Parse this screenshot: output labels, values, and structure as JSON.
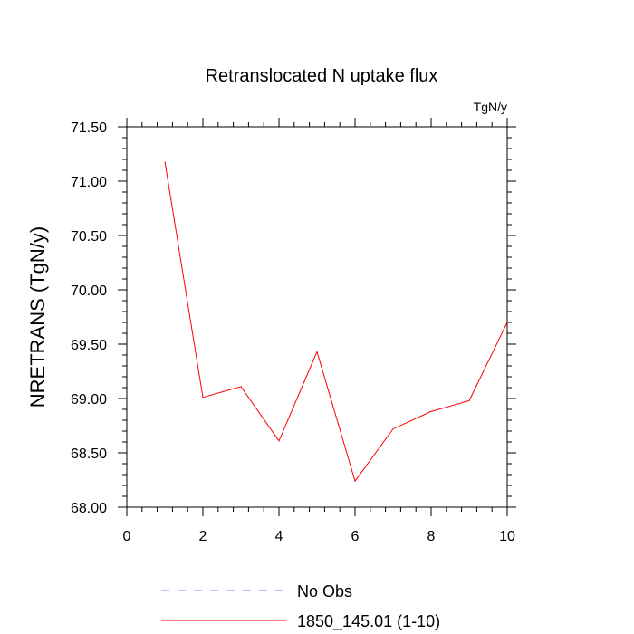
{
  "chart_data": {
    "type": "line",
    "title": "Retranslocated N uptake flux",
    "units": "TgN/y",
    "xlabel": "",
    "ylabel": "NRETRANS  (TgN/y)",
    "xlim": [
      0,
      10
    ],
    "ylim": [
      68.0,
      71.5
    ],
    "xticks": [
      0,
      2,
      4,
      6,
      8,
      10
    ],
    "xtick_labels": [
      "0",
      "2",
      "4",
      "6",
      "8",
      "10"
    ],
    "yticks": [
      68.0,
      68.5,
      69.0,
      69.5,
      70.0,
      70.5,
      71.0,
      71.5
    ],
    "ytick_labels": [
      "68.00",
      "68.50",
      "69.00",
      "69.50",
      "70.00",
      "70.50",
      "71.00",
      "71.50"
    ],
    "grid": false,
    "legend_position": "bottom",
    "series": [
      {
        "name": "No Obs",
        "color": "#8080ff",
        "dash": "dashed",
        "x": [],
        "y": []
      },
      {
        "name": "1850_145.01 (1-10)",
        "color": "#ff0000",
        "dash": "solid",
        "x": [
          1,
          2,
          3,
          4,
          5,
          6,
          7,
          8,
          9,
          10
        ],
        "y": [
          71.18,
          69.01,
          69.11,
          68.61,
          69.43,
          68.24,
          68.72,
          68.88,
          68.98,
          69.7
        ]
      }
    ]
  }
}
